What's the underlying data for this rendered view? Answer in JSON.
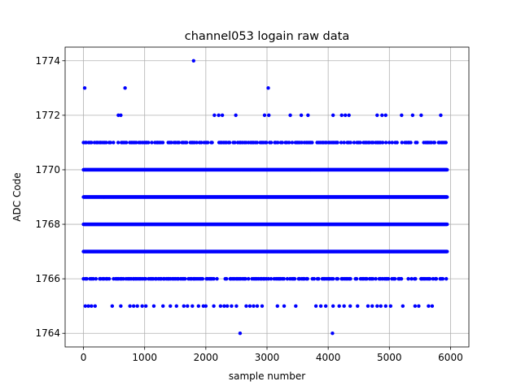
{
  "chart_data": {
    "type": "scatter",
    "title": "channel053 logain raw data",
    "xlabel": "sample number",
    "ylabel": "ADC Code",
    "xlim": [
      -300,
      6300
    ],
    "ylim": [
      1763.5,
      1774.5
    ],
    "xticks": [
      0,
      1000,
      2000,
      3000,
      4000,
      5000,
      6000
    ],
    "yticks": [
      1764,
      1766,
      1768,
      1770,
      1772,
      1774
    ],
    "grid": true,
    "marker_color": "#0000ff",
    "x_extent": [
      0,
      5950
    ],
    "dense_levels": [
      1766,
      1767,
      1768,
      1769,
      1770,
      1771
    ],
    "series": [
      {
        "values": [
          [
            1800,
            1774
          ],
          [
            20,
            1773
          ],
          [
            680,
            1773
          ],
          [
            3020,
            1773
          ],
          [
            570,
            1772
          ],
          [
            610,
            1772
          ],
          [
            2140,
            1772
          ],
          [
            2210,
            1772
          ],
          [
            2270,
            1772
          ],
          [
            2490,
            1772
          ],
          [
            2960,
            1772
          ],
          [
            3030,
            1772
          ],
          [
            3380,
            1772
          ],
          [
            3560,
            1772
          ],
          [
            3670,
            1772
          ],
          [
            4080,
            1772
          ],
          [
            4220,
            1772
          ],
          [
            4280,
            1772
          ],
          [
            4340,
            1772
          ],
          [
            4800,
            1772
          ],
          [
            4880,
            1772
          ],
          [
            4940,
            1772
          ],
          [
            5200,
            1772
          ],
          [
            5380,
            1772
          ],
          [
            5520,
            1772
          ],
          [
            5840,
            1772
          ],
          [
            30,
            1765
          ],
          [
            80,
            1765
          ],
          [
            130,
            1765
          ],
          [
            190,
            1765
          ],
          [
            470,
            1765
          ],
          [
            610,
            1765
          ],
          [
            760,
            1765
          ],
          [
            820,
            1765
          ],
          [
            880,
            1765
          ],
          [
            960,
            1765
          ],
          [
            1020,
            1765
          ],
          [
            1150,
            1765
          ],
          [
            1300,
            1765
          ],
          [
            1420,
            1765
          ],
          [
            1520,
            1765
          ],
          [
            1640,
            1765
          ],
          [
            1700,
            1765
          ],
          [
            1780,
            1765
          ],
          [
            1880,
            1765
          ],
          [
            1960,
            1765
          ],
          [
            2000,
            1765
          ],
          [
            2130,
            1765
          ],
          [
            2240,
            1765
          ],
          [
            2300,
            1765
          ],
          [
            2350,
            1765
          ],
          [
            2420,
            1765
          ],
          [
            2500,
            1765
          ],
          [
            2660,
            1765
          ],
          [
            2720,
            1765
          ],
          [
            2780,
            1765
          ],
          [
            2840,
            1765
          ],
          [
            2920,
            1765
          ],
          [
            3170,
            1765
          ],
          [
            3280,
            1765
          ],
          [
            3470,
            1765
          ],
          [
            3800,
            1765
          ],
          [
            3880,
            1765
          ],
          [
            3960,
            1765
          ],
          [
            4080,
            1765
          ],
          [
            4180,
            1765
          ],
          [
            4260,
            1765
          ],
          [
            4360,
            1765
          ],
          [
            4480,
            1765
          ],
          [
            4650,
            1765
          ],
          [
            4720,
            1765
          ],
          [
            4800,
            1765
          ],
          [
            4860,
            1765
          ],
          [
            4940,
            1765
          ],
          [
            5020,
            1765
          ],
          [
            5220,
            1765
          ],
          [
            5420,
            1765
          ],
          [
            5480,
            1765
          ],
          [
            5640,
            1765
          ],
          [
            5700,
            1765
          ],
          [
            2560,
            1764
          ],
          [
            4070,
            1764
          ]
        ]
      }
    ]
  }
}
